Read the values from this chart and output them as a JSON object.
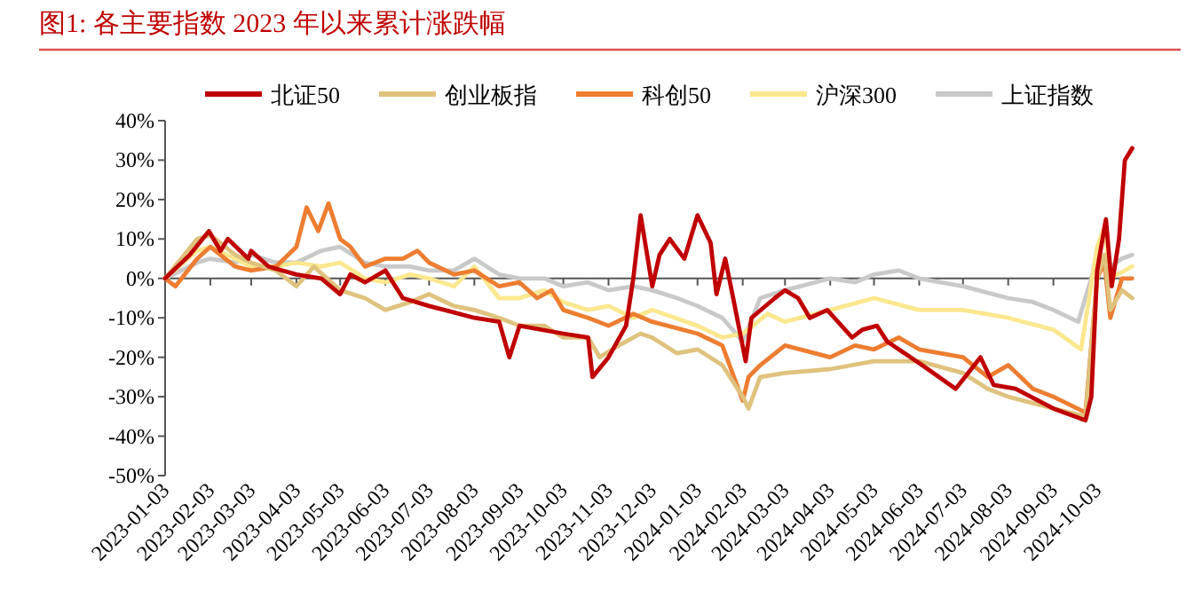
{
  "chart_data": {
    "type": "line",
    "title": "图1:   各主要指数 2023 年以来累计涨跌幅",
    "legend": "top",
    "marker": "none",
    "line_style": "solid",
    "xlim": [
      "2023-01-03",
      "2024-10-28"
    ],
    "xticks": [
      "2023-01-03",
      "2023-02-03",
      "2023-03-03",
      "2023-04-03",
      "2023-05-03",
      "2023-06-03",
      "2023-07-03",
      "2023-08-03",
      "2023-09-03",
      "2023-10-03",
      "2023-11-03",
      "2023-12-03",
      "2024-01-03",
      "2024-02-03",
      "2024-03-03",
      "2024-04-03",
      "2024-05-03",
      "2024-06-03",
      "2024-07-03",
      "2024-08-03",
      "2024-09-03",
      "2024-10-03"
    ],
    "ylim": [
      -50,
      40
    ],
    "yticks": [
      {
        "value": -50,
        "label": "-50%"
      },
      {
        "value": -40,
        "label": "-40%"
      },
      {
        "value": -30,
        "label": "-30%"
      },
      {
        "value": -20,
        "label": "-20%"
      },
      {
        "value": -10,
        "label": "-10%"
      },
      {
        "value": 0,
        "label": "0%"
      },
      {
        "value": 10,
        "label": "10%"
      },
      {
        "value": 20,
        "label": "20%"
      },
      {
        "value": 30,
        "label": "30%"
      },
      {
        "value": 40,
        "label": "40%"
      }
    ],
    "series": [
      {
        "name": "北证50",
        "color": "#c00000",
        "x": [
          "2023-01-03",
          "2023-01-20",
          "2023-02-02",
          "2023-02-10",
          "2023-02-15",
          "2023-03-01",
          "2023-03-03",
          "2023-03-15",
          "2023-04-03",
          "2023-04-20",
          "2023-05-03",
          "2023-05-10",
          "2023-05-20",
          "2023-06-03",
          "2023-06-15",
          "2023-07-03",
          "2023-08-03",
          "2023-08-20",
          "2023-08-27",
          "2023-09-03",
          "2023-10-03",
          "2023-10-20",
          "2023-10-23",
          "2023-11-03",
          "2023-11-15",
          "2023-11-20",
          "2023-11-25",
          "2023-12-03",
          "2023-12-08",
          "2023-12-15",
          "2023-12-25",
          "2024-01-03",
          "2024-01-12",
          "2024-01-16",
          "2024-01-22",
          "2024-01-28",
          "2024-02-05",
          "2024-02-09",
          "2024-02-25",
          "2024-03-03",
          "2024-03-12",
          "2024-03-20",
          "2024-04-01",
          "2024-04-18",
          "2024-04-25",
          "2024-05-05",
          "2024-05-12",
          "2024-06-05",
          "2024-06-28",
          "2024-07-15",
          "2024-07-24",
          "2024-08-08",
          "2024-09-03",
          "2024-09-25",
          "2024-09-29",
          "2024-10-03",
          "2024-10-09",
          "2024-10-13",
          "2024-10-18",
          "2024-10-22",
          "2024-10-27"
        ],
        "values": [
          0,
          6,
          12,
          7,
          10,
          5,
          7,
          3,
          1,
          0,
          -4,
          1,
          -1,
          2,
          -5,
          -7,
          -10,
          -11,
          -20,
          -12,
          -14,
          -15,
          -25,
          -20,
          -12,
          0,
          16,
          -2,
          6,
          10,
          5,
          16,
          9,
          -4,
          5,
          -6,
          -21,
          -10,
          -5,
          -3,
          -5,
          -10,
          -8,
          -15,
          -13,
          -12,
          -16,
          -22,
          -28,
          -20,
          -27,
          -28,
          -33,
          -36,
          -30,
          2,
          15,
          -2,
          10,
          30,
          33
        ]
      },
      {
        "name": "创业板指",
        "color": "#dfc27d",
        "x": [
          "2023-01-03",
          "2023-01-25",
          "2023-02-03",
          "2023-02-20",
          "2023-03-03",
          "2023-03-20",
          "2023-04-03",
          "2023-04-15",
          "2023-05-03",
          "2023-05-20",
          "2023-06-03",
          "2023-06-20",
          "2023-07-03",
          "2023-07-20",
          "2023-08-03",
          "2023-08-20",
          "2023-09-03",
          "2023-09-20",
          "2023-10-03",
          "2023-10-20",
          "2023-10-28",
          "2023-11-10",
          "2023-11-25",
          "2023-12-03",
          "2023-12-20",
          "2024-01-03",
          "2024-01-20",
          "2024-02-03",
          "2024-02-07",
          "2024-02-15",
          "2024-03-03",
          "2024-04-03",
          "2024-05-03",
          "2024-06-03",
          "2024-07-03",
          "2024-07-20",
          "2024-08-03",
          "2024-09-03",
          "2024-09-25",
          "2024-10-03",
          "2024-10-08",
          "2024-10-12",
          "2024-10-20",
          "2024-10-27"
        ],
        "values": [
          0,
          10,
          11,
          6,
          4,
          2,
          -2,
          3,
          -3,
          -5,
          -8,
          -6,
          -4,
          -7,
          -8,
          -10,
          -12,
          -12,
          -15,
          -15,
          -20,
          -17,
          -14,
          -15,
          -19,
          -18,
          -22,
          -30,
          -33,
          -25,
          -24,
          -23,
          -21,
          -21,
          -24,
          -28,
          -30,
          -33,
          -35,
          0,
          6,
          -8,
          -3,
          -5
        ]
      },
      {
        "name": "科创50",
        "color": "#ed7d31",
        "x": [
          "2023-01-03",
          "2023-01-10",
          "2023-01-25",
          "2023-02-03",
          "2023-02-20",
          "2023-03-03",
          "2023-03-20",
          "2023-04-03",
          "2023-04-10",
          "2023-04-18",
          "2023-04-25",
          "2023-05-03",
          "2023-05-10",
          "2023-05-20",
          "2023-06-03",
          "2023-06-15",
          "2023-06-25",
          "2023-07-03",
          "2023-07-20",
          "2023-08-03",
          "2023-08-20",
          "2023-09-03",
          "2023-09-15",
          "2023-09-25",
          "2023-10-03",
          "2023-10-20",
          "2023-11-03",
          "2023-11-20",
          "2023-12-03",
          "2024-01-03",
          "2024-01-20",
          "2024-02-03",
          "2024-02-07",
          "2024-02-15",
          "2024-03-03",
          "2024-04-03",
          "2024-04-20",
          "2024-05-03",
          "2024-05-20",
          "2024-06-03",
          "2024-07-03",
          "2024-07-20",
          "2024-08-03",
          "2024-08-20",
          "2024-09-03",
          "2024-09-25",
          "2024-10-03",
          "2024-10-08",
          "2024-10-12",
          "2024-10-20",
          "2024-10-27"
        ],
        "values": [
          0,
          -2,
          5,
          8,
          3,
          2,
          3,
          8,
          18,
          12,
          19,
          10,
          8,
          3,
          5,
          5,
          7,
          4,
          1,
          2,
          -2,
          -1,
          -5,
          -3,
          -8,
          -10,
          -12,
          -9,
          -11,
          -14,
          -17,
          -31,
          -25,
          -22,
          -17,
          -20,
          -17,
          -18,
          -15,
          -18,
          -20,
          -25,
          -22,
          -28,
          -30,
          -34,
          0,
          4,
          -10,
          0,
          0
        ]
      },
      {
        "name": "沪深300",
        "color": "#fbe78e",
        "x": [
          "2023-01-03",
          "2023-01-25",
          "2023-02-03",
          "2023-02-20",
          "2023-03-03",
          "2023-03-20",
          "2023-04-03",
          "2023-04-20",
          "2023-05-03",
          "2023-05-20",
          "2023-06-03",
          "2023-06-20",
          "2023-07-03",
          "2023-07-20",
          "2023-08-03",
          "2023-08-20",
          "2023-09-03",
          "2023-09-20",
          "2023-10-03",
          "2023-10-20",
          "2023-11-03",
          "2023-11-20",
          "2023-12-03",
          "2024-01-03",
          "2024-01-20",
          "2024-02-03",
          "2024-02-20",
          "2024-03-03",
          "2024-04-03",
          "2024-05-03",
          "2024-06-03",
          "2024-07-03",
          "2024-08-03",
          "2024-09-03",
          "2024-09-22",
          "2024-10-03",
          "2024-10-08",
          "2024-10-12",
          "2024-10-27"
        ],
        "values": [
          0,
          7,
          8,
          5,
          3,
          3,
          4,
          3,
          4,
          0,
          -1,
          1,
          0,
          -2,
          3,
          -5,
          -5,
          -3,
          -6,
          -8,
          -7,
          -10,
          -8,
          -12,
          -15,
          -14,
          -9,
          -11,
          -8,
          -5,
          -8,
          -8,
          -10,
          -13,
          -18,
          8,
          13,
          0,
          3
        ]
      },
      {
        "name": "上证指数",
        "color": "#c9c9c9",
        "x": [
          "2023-01-03",
          "2023-01-25",
          "2023-02-03",
          "2023-02-20",
          "2023-03-03",
          "2023-03-20",
          "2023-04-03",
          "2023-04-20",
          "2023-05-03",
          "2023-05-20",
          "2023-06-03",
          "2023-06-20",
          "2023-07-03",
          "2023-07-20",
          "2023-08-03",
          "2023-08-20",
          "2023-09-03",
          "2023-09-20",
          "2023-10-03",
          "2023-10-20",
          "2023-11-03",
          "2023-11-20",
          "2023-12-03",
          "2023-12-20",
          "2024-01-03",
          "2024-01-20",
          "2024-02-03",
          "2024-02-15",
          "2024-03-03",
          "2024-04-03",
          "2024-04-20",
          "2024-05-03",
          "2024-05-20",
          "2024-06-03",
          "2024-07-03",
          "2024-08-03",
          "2024-08-20",
          "2024-09-03",
          "2024-09-20",
          "2024-10-03",
          "2024-10-08",
          "2024-10-12",
          "2024-10-20",
          "2024-10-27"
        ],
        "values": [
          0,
          4,
          5,
          4,
          6,
          4,
          4,
          7,
          8,
          4,
          3,
          3,
          2,
          2,
          5,
          1,
          0,
          0,
          -2,
          -1,
          -3,
          -2,
          -3,
          -5,
          -7,
          -10,
          -16,
          -5,
          -3,
          0,
          -1,
          1,
          2,
          0,
          -2,
          -5,
          -6,
          -8,
          -11,
          5,
          12,
          3,
          5,
          6
        ]
      }
    ]
  }
}
